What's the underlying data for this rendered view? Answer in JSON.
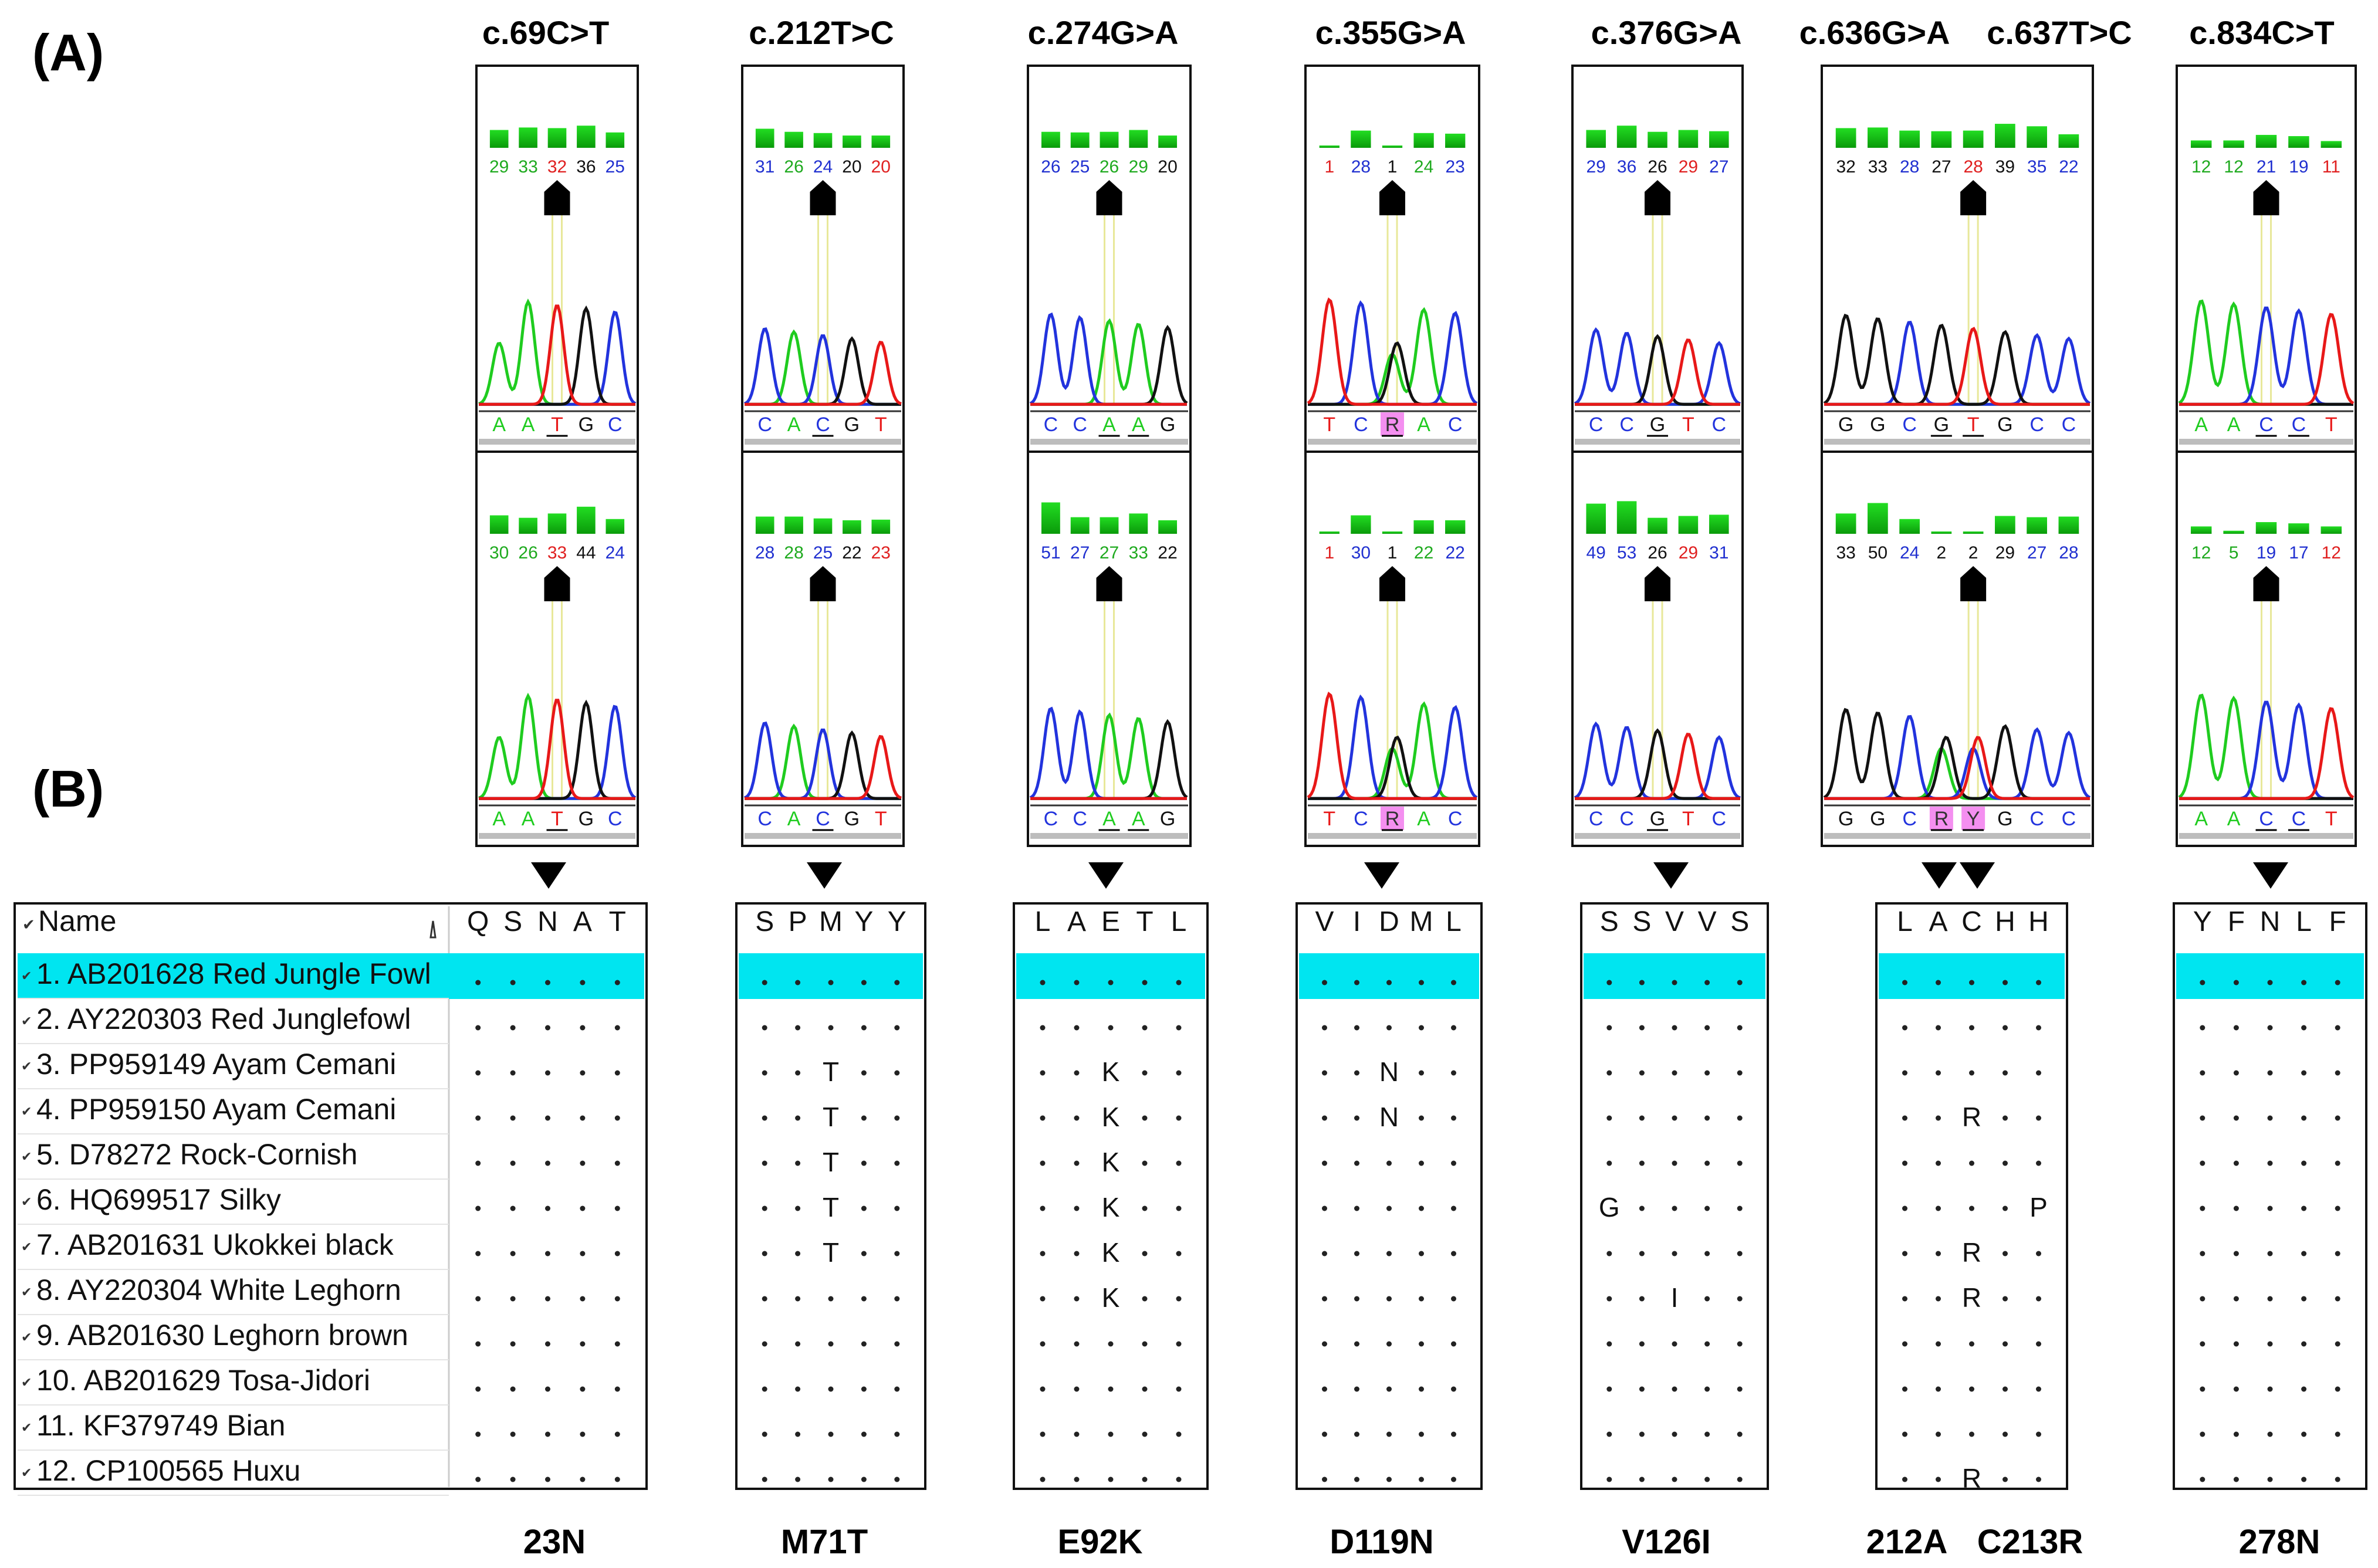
{
  "panel_labels": {
    "a": "(A)",
    "b": "(B)"
  },
  "mutations": [
    "c.69C>T",
    "c.212T>C",
    "c.274G>A",
    "c.355G>A",
    "c.376G>A",
    "c.636G>A",
    "c.637T>C",
    "c.834C>T"
  ],
  "aa_changes": [
    "23N",
    "M71T",
    "E92K",
    "D119N",
    "V126I",
    "212A",
    "C213R",
    "278N"
  ],
  "chromatograms": [
    {
      "top": {
        "qv": [
          "29",
          "33",
          "32",
          "36",
          "25"
        ],
        "qv_colors": [
          "#1faa1f",
          "#1faa1f",
          "#e02020",
          "#111111",
          "#2030d0"
        ],
        "bases": [
          "A",
          "A",
          "T",
          "G",
          "C"
        ]
      },
      "bottom": {
        "qv": [
          "30",
          "26",
          "33",
          "44",
          "24"
        ],
        "qv_colors": [
          "#1faa1f",
          "#1faa1f",
          "#e02020",
          "#111111",
          "#2030d0"
        ],
        "bases": [
          "A",
          "A",
          "T",
          "G",
          "C"
        ]
      }
    },
    {
      "top": {
        "qv": [
          "31",
          "26",
          "24",
          "20",
          "20"
        ],
        "qv_colors": [
          "#2030d0",
          "#1faa1f",
          "#2030d0",
          "#111111",
          "#e02020"
        ],
        "bases": [
          "C",
          "A",
          "C",
          "G",
          "T"
        ]
      },
      "bottom": {
        "qv": [
          "28",
          "28",
          "25",
          "22",
          "23"
        ],
        "qv_colors": [
          "#2030d0",
          "#1faa1f",
          "#2030d0",
          "#111111",
          "#e02020"
        ],
        "bases": [
          "C",
          "A",
          "C",
          "G",
          "T"
        ]
      }
    },
    {
      "top": {
        "qv": [
          "26",
          "25",
          "26",
          "29",
          "20"
        ],
        "qv_colors": [
          "#2030d0",
          "#2030d0",
          "#1faa1f",
          "#1faa1f",
          "#111111"
        ],
        "bases": [
          "C",
          "C",
          "A",
          "A",
          "G"
        ]
      },
      "bottom": {
        "qv": [
          "51",
          "27",
          "27",
          "33",
          "22"
        ],
        "qv_colors": [
          "#2030d0",
          "#2030d0",
          "#1faa1f",
          "#1faa1f",
          "#111111"
        ],
        "bases": [
          "C",
          "C",
          "A",
          "A",
          "G"
        ]
      }
    },
    {
      "top": {
        "qv": [
          "1",
          "28",
          "1",
          "24",
          "23"
        ],
        "qv_colors": [
          "#e02020",
          "#2030d0",
          "#111111",
          "#1faa1f",
          "#2030d0"
        ],
        "bases": [
          "T",
          "C",
          "R",
          "A",
          "C"
        ]
      },
      "bottom": {
        "qv": [
          "1",
          "30",
          "1",
          "22",
          "22"
        ],
        "qv_colors": [
          "#e02020",
          "#2030d0",
          "#111111",
          "#1faa1f",
          "#2030d0"
        ],
        "bases": [
          "T",
          "C",
          "R",
          "A",
          "C"
        ]
      }
    },
    {
      "top": {
        "qv": [
          "29",
          "36",
          "26",
          "29",
          "27"
        ],
        "qv_colors": [
          "#2030d0",
          "#2030d0",
          "#111111",
          "#e02020",
          "#2030d0"
        ],
        "bases": [
          "C",
          "C",
          "G",
          "T",
          "C"
        ]
      },
      "bottom": {
        "qv": [
          "49",
          "53",
          "26",
          "29",
          "31"
        ],
        "qv_colors": [
          "#2030d0",
          "#2030d0",
          "#111111",
          "#e02020",
          "#2030d0"
        ],
        "bases": [
          "C",
          "C",
          "G",
          "T",
          "C"
        ]
      }
    },
    {
      "top": {
        "qv": [
          "32",
          "33",
          "28",
          "27",
          "28",
          "39",
          "35",
          "22"
        ],
        "qv_colors": [
          "#111111",
          "#111111",
          "#2030d0",
          "#111111",
          "#e02020",
          "#111111",
          "#2030d0",
          "#2030d0"
        ],
        "bases": [
          "G",
          "G",
          "C",
          "G",
          "T",
          "G",
          "C",
          "C"
        ]
      },
      "bottom": {
        "qv": [
          "33",
          "50",
          "24",
          "2",
          "2",
          "29",
          "27",
          "28"
        ],
        "qv_colors": [
          "#111111",
          "#111111",
          "#2030d0",
          "#111111",
          "#111111",
          "#111111",
          "#2030d0",
          "#2030d0"
        ],
        "bases": [
          "G",
          "G",
          "C",
          "R",
          "Y",
          "G",
          "C",
          "C"
        ]
      }
    },
    {
      "top": {
        "qv": [
          "12",
          "12",
          "21",
          "19",
          "11"
        ],
        "qv_colors": [
          "#1faa1f",
          "#1faa1f",
          "#2030d0",
          "#2030d0",
          "#e02020"
        ],
        "bases": [
          "A",
          "A",
          "C",
          "C",
          "T"
        ]
      },
      "bottom": {
        "qv": [
          "12",
          "5",
          "19",
          "17",
          "12"
        ],
        "qv_colors": [
          "#1faa1f",
          "#1faa1f",
          "#2030d0",
          "#2030d0",
          "#e02020"
        ],
        "bases": [
          "A",
          "A",
          "C",
          "C",
          "T"
        ]
      }
    }
  ],
  "alignment_names": {
    "header": "Name",
    "rows": [
      "1. AB201628 Red Jungle Fowl",
      "2. AY220303 Red Junglefowl",
      "3. PP959149 Ayam Cemani",
      "4. PP959150 Ayam Cemani",
      "5. D78272 Rock-Cornish",
      "6. HQ699517 Silky",
      "7. AB201631 Ukokkei black",
      "8. AY220304 White Leghorn",
      "9. AB201630 Leghorn brown",
      "10. AB201629 Tosa-Jidori",
      "11. KF379749 Bian",
      "12. CP100565 Huxu"
    ]
  },
  "alignment_blocks": [
    {
      "header": [
        "Q",
        "S",
        "N",
        "A",
        "T"
      ],
      "rows": [
        ".....",
        ".....",
        ".....",
        ".....",
        ".....",
        ".....",
        ".....",
        ".....",
        ".....",
        ".....",
        ".....",
        "....."
      ]
    },
    {
      "header": [
        "S",
        "P",
        "M",
        "Y",
        "Y"
      ],
      "rows": [
        ".....",
        ".....",
        "..T..",
        "..T..",
        "..T..",
        "..T..",
        "..T..",
        ".....",
        ".....",
        ".....",
        ".....",
        "....."
      ]
    },
    {
      "header": [
        "L",
        "A",
        "E",
        "T",
        "L"
      ],
      "rows": [
        ".....",
        ".....",
        "..K..",
        "..K..",
        "..K..",
        "..K..",
        "..K..",
        "..K..",
        ".....",
        ".....",
        ".....",
        "....."
      ]
    },
    {
      "header": [
        "V",
        "I",
        "D",
        "M",
        "L"
      ],
      "rows": [
        ".....",
        ".....",
        "..N..",
        "..N..",
        ".....",
        ".....",
        ".....",
        ".....",
        ".....",
        ".....",
        ".....",
        "....."
      ]
    },
    {
      "header": [
        "S",
        "S",
        "V",
        "V",
        "S"
      ],
      "rows": [
        ".....",
        ".....",
        ".....",
        ".....",
        ".....",
        "G....",
        ".....",
        "..I..",
        ".....",
        ".....",
        ".....",
        "....."
      ]
    },
    {
      "header": [
        "L",
        "A",
        "C",
        "H",
        "H"
      ],
      "rows": [
        ".....",
        ".....",
        ".....",
        "..R..",
        ".....",
        "....P",
        "..R..",
        "..R..",
        ".....",
        ".....",
        ".....",
        "..R.."
      ]
    },
    {
      "header": [
        "Y",
        "F",
        "N",
        "L",
        "F"
      ],
      "rows": [
        ".....",
        ".....",
        ".....",
        ".....",
        ".....",
        ".....",
        ".....",
        ".....",
        ".....",
        ".....",
        ".....",
        "....."
      ]
    }
  ],
  "colors": {
    "highlight_row": "#00e5f0",
    "ambiguous_base_bg": "#f48ff0",
    "trace_A": "#1fcc1f",
    "trace_C": "#2233dd",
    "trace_G": "#111111",
    "trace_T": "#e81818",
    "qv_bar_top": "#22dd22",
    "qv_bar_bottom": "#0a9a0a"
  }
}
